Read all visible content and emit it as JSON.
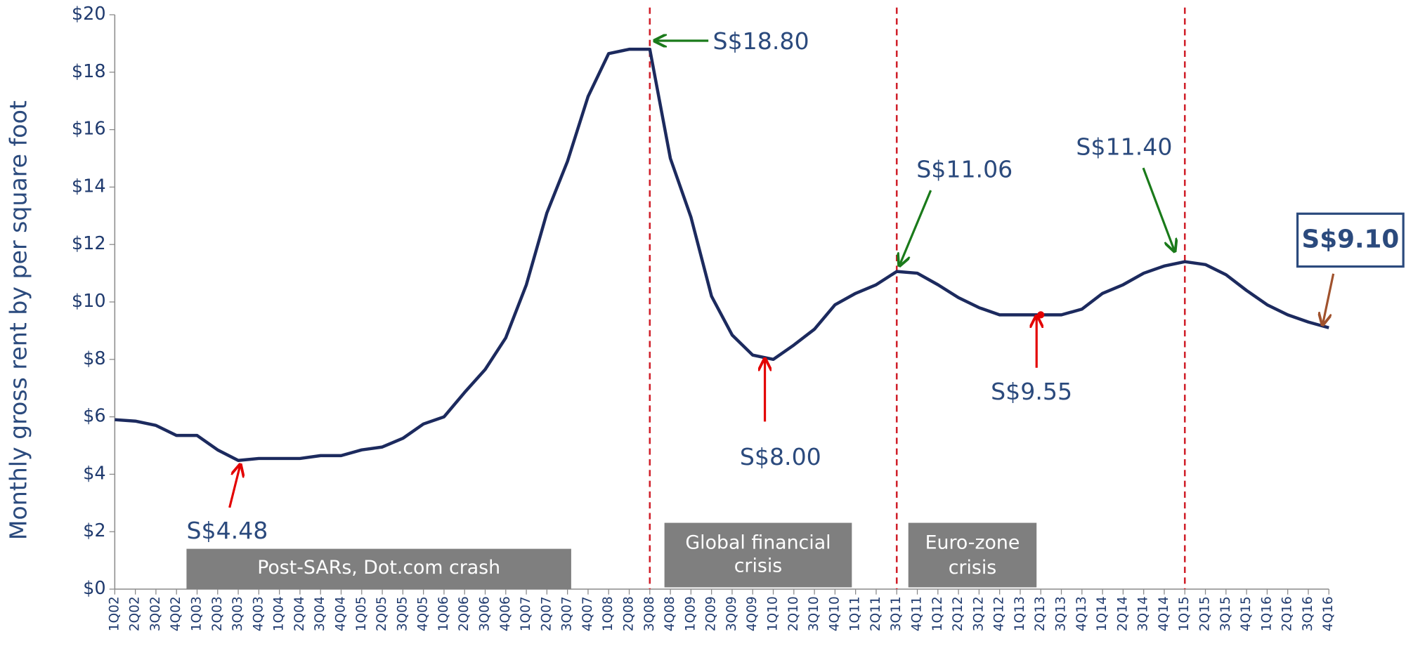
{
  "chart_data": {
    "type": "line",
    "y_label": "Monthly gross rent by per square foot",
    "categories": [
      "1Q02",
      "2Q02",
      "3Q02",
      "4Q02",
      "1Q03",
      "2Q03",
      "3Q03",
      "4Q03",
      "1Q04",
      "2Q04",
      "3Q04",
      "4Q04",
      "1Q05",
      "2Q05",
      "3Q05",
      "4Q05",
      "1Q06",
      "2Q06",
      "3Q06",
      "4Q06",
      "1Q07",
      "2Q07",
      "3Q07",
      "4Q07",
      "1Q08",
      "2Q08",
      "3Q08",
      "4Q08",
      "1Q09",
      "2Q09",
      "3Q09",
      "4Q09",
      "1Q10",
      "2Q10",
      "3Q10",
      "4Q10",
      "1Q11",
      "2Q11",
      "3Q11",
      "4Q11",
      "1Q12",
      "2Q12",
      "3Q12",
      "4Q12",
      "1Q13",
      "2Q13",
      "3Q13",
      "4Q13",
      "1Q14",
      "2Q14",
      "3Q14",
      "4Q14",
      "1Q15",
      "2Q15",
      "3Q15",
      "4Q15",
      "1Q16",
      "2Q16",
      "3Q16",
      "4Q16"
    ],
    "values": [
      5.9,
      5.85,
      5.7,
      5.35,
      5.35,
      4.85,
      4.48,
      4.55,
      4.55,
      4.55,
      4.65,
      4.65,
      4.85,
      4.95,
      5.25,
      5.75,
      6.0,
      6.85,
      7.65,
      8.75,
      10.6,
      13.1,
      14.9,
      17.15,
      18.65,
      18.8,
      18.8,
      15.0,
      12.95,
      10.2,
      8.85,
      8.15,
      8.0,
      8.5,
      9.05,
      9.9,
      10.3,
      10.6,
      11.06,
      11.0,
      10.6,
      10.15,
      9.8,
      9.55,
      9.55,
      9.55,
      9.55,
      9.75,
      10.3,
      10.6,
      11.0,
      11.25,
      11.4,
      11.3,
      10.95,
      10.4,
      9.9,
      9.55,
      9.3,
      9.1
    ],
    "color": "#1c2a5e",
    "ylim": [
      0,
      20
    ],
    "yticks": [
      {
        "value": 0,
        "label": "$0"
      },
      {
        "value": 2,
        "label": "$2"
      },
      {
        "value": 4,
        "label": "$4"
      },
      {
        "value": 6,
        "label": "$6"
      },
      {
        "value": 8,
        "label": "$8"
      },
      {
        "value": 10,
        "label": "$10"
      },
      {
        "value": 12,
        "label": "$12"
      },
      {
        "value": 14,
        "label": "$14"
      },
      {
        "value": 16,
        "label": "$16"
      },
      {
        "value": 18,
        "label": "$18"
      },
      {
        "value": 20,
        "label": "$20"
      }
    ],
    "annotations": [
      "S$18.80",
      "S$4.48",
      "S$8.00",
      "S$9.55",
      "S$11.06",
      "S$11.40",
      "S$9.10"
    ],
    "periods": [
      [
        "Post-SARs, Dot.com crash"
      ],
      [
        "Global financial",
        "crisis"
      ],
      [
        "Euro-zone",
        "crisis"
      ]
    ]
  }
}
